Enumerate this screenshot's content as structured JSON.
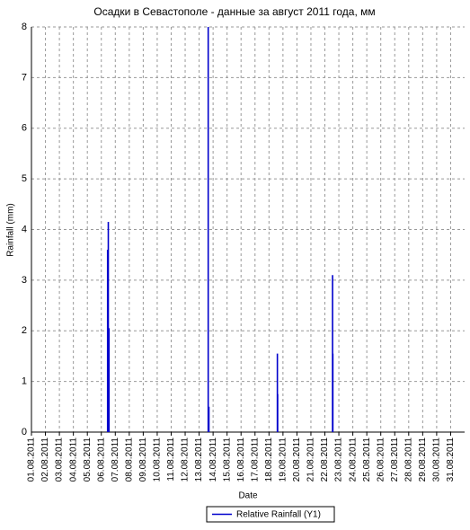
{
  "chart_data": {
    "type": "spike",
    "title": "Осадки в Севастополе - данные за август 2011 года, мм",
    "x_label": "Date",
    "y_label": "Rainfall (mm)",
    "series": [
      {
        "name": "Relative Rainfall (Y1)",
        "color": "#0000cc",
        "x": [
          6.45,
          6.5,
          6.55,
          13.65,
          13.7,
          18.6,
          18.62,
          22.55,
          22.57
        ],
        "values": [
          3.6,
          4.15,
          2.05,
          8,
          0.5,
          1.55,
          0.75,
          3.1,
          1.55
        ]
      }
    ],
    "xlim": [
      1,
      32
    ],
    "xticks": [
      {
        "value": 1,
        "label": "01.08.2011"
      },
      {
        "value": 2,
        "label": "02.08.2011"
      },
      {
        "value": 3,
        "label": "03.08.2011"
      },
      {
        "value": 4,
        "label": "04.08.2011"
      },
      {
        "value": 5,
        "label": "05.08.2011"
      },
      {
        "value": 6,
        "label": "06.08.2011"
      },
      {
        "value": 7,
        "label": "07.08.2011"
      },
      {
        "value": 8,
        "label": "08.08.2011"
      },
      {
        "value": 9,
        "label": "09.08.2011"
      },
      {
        "value": 10,
        "label": "10.08.2011"
      },
      {
        "value": 11,
        "label": "11.08.2011"
      },
      {
        "value": 12,
        "label": "12.08.2011"
      },
      {
        "value": 13,
        "label": "13.08.2011"
      },
      {
        "value": 14,
        "label": "14.08.2011"
      },
      {
        "value": 15,
        "label": "15.08.2011"
      },
      {
        "value": 16,
        "label": "16.08.2011"
      },
      {
        "value": 17,
        "label": "17.08.2011"
      },
      {
        "value": 18,
        "label": "18.08.2011"
      },
      {
        "value": 19,
        "label": "19.08.2011"
      },
      {
        "value": 20,
        "label": "20.08.2011"
      },
      {
        "value": 21,
        "label": "21.08.2011"
      },
      {
        "value": 22,
        "label": "22.08.2011"
      },
      {
        "value": 23,
        "label": "23.08.2011"
      },
      {
        "value": 24,
        "label": "24.08.2011"
      },
      {
        "value": 25,
        "label": "25.08.2011"
      },
      {
        "value": 26,
        "label": "26.08.2011"
      },
      {
        "value": 27,
        "label": "27.08.2011"
      },
      {
        "value": 28,
        "label": "28.08.2011"
      },
      {
        "value": 29,
        "label": "29.08.2011"
      },
      {
        "value": 30,
        "label": "30.08.2011"
      },
      {
        "value": 31,
        "label": "31.08.2011"
      }
    ],
    "ylim": [
      0,
      8
    ],
    "yticks": [
      0,
      1,
      2,
      3,
      4,
      5,
      6,
      7,
      8
    ],
    "grid": true
  }
}
